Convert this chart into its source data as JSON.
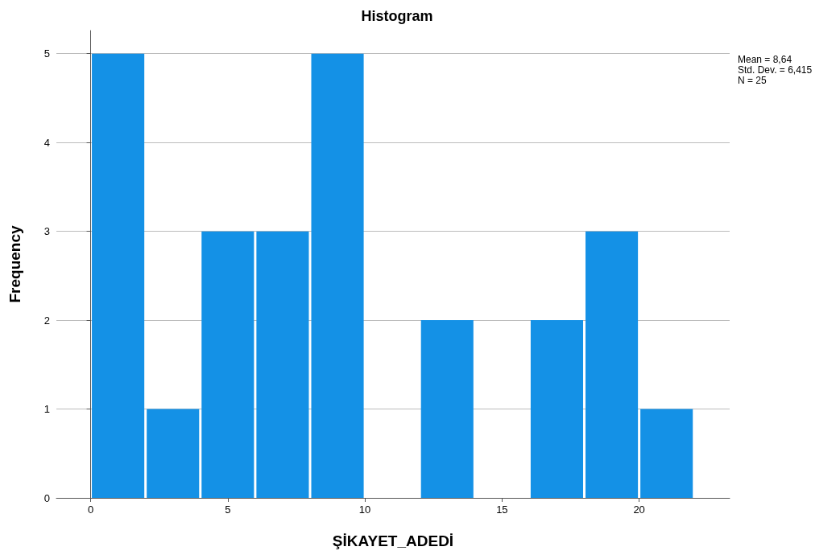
{
  "chart_data": {
    "type": "histogram",
    "title": "Histogram",
    "xlabel": "ŞİKAYET_ADEDİ",
    "ylabel": "Frequency",
    "bins": [
      0,
      2,
      4,
      6,
      8,
      10,
      12,
      14,
      16,
      18,
      20,
      22
    ],
    "values": [
      5,
      1,
      3,
      3,
      5,
      0,
      2,
      0,
      2,
      3,
      1
    ],
    "color": "#1491e6",
    "xlim": [
      -1.25,
      23.3
    ],
    "xticks": [
      0,
      5,
      10,
      15,
      20
    ],
    "ylim": [
      0,
      5.26
    ],
    "yticks": [
      0,
      1,
      2,
      3,
      4,
      5
    ],
    "grid": "y",
    "annotations": [
      "Mean = 8,64",
      "Std. Dev. = 6,415",
      "N = 25"
    ]
  }
}
